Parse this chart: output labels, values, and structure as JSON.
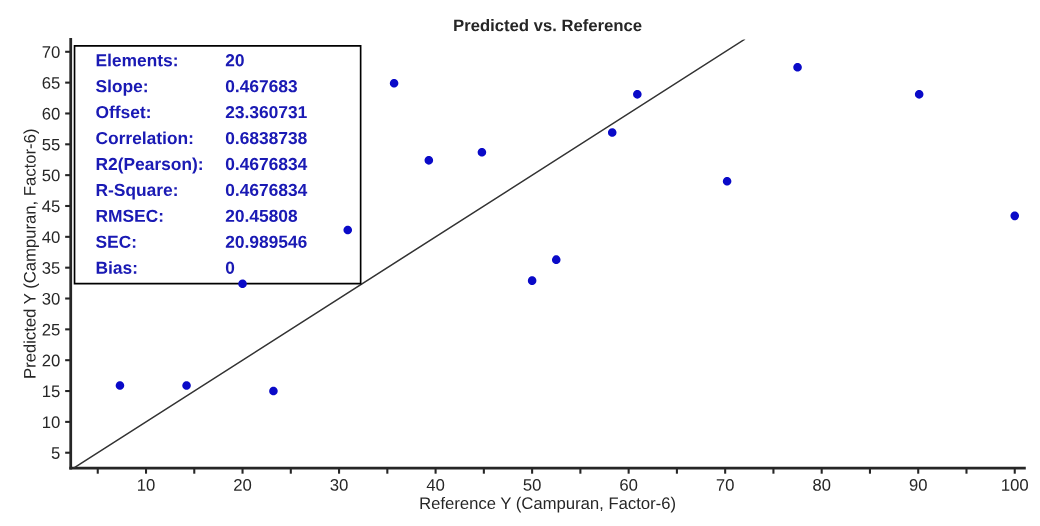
{
  "chart_data": {
    "type": "scatter",
    "title": "Predicted vs. Reference",
    "xlabel": "Reference Y (Campuran, Factor-6)",
    "ylabel": "Predicted Y (Campuran, Factor-6)",
    "xlim": [
      2.2,
      101
    ],
    "ylim": [
      2.5,
      72
    ],
    "xticks": [
      {
        "value": 5,
        "label": null
      },
      10,
      {
        "value": 15,
        "label": null
      },
      20,
      {
        "value": 25,
        "label": null
      },
      30,
      {
        "value": 35,
        "label": null
      },
      40,
      {
        "value": 45,
        "label": null
      },
      50,
      {
        "value": 55,
        "label": null
      },
      60,
      {
        "value": 65,
        "label": null
      },
      70,
      {
        "value": 75,
        "label": null
      },
      80,
      {
        "value": 85,
        "label": null
      },
      90,
      {
        "value": 95,
        "label": null
      },
      100
    ],
    "yticks": [
      5,
      10,
      15,
      20,
      25,
      30,
      35,
      40,
      45,
      50,
      55,
      60,
      65,
      70
    ],
    "grid": false,
    "legend": false,
    "marker": "circle",
    "series": [
      {
        "color": "#0a0ac8",
        "x": [
          7.3,
          14.2,
          20.0,
          23.2,
          30.9,
          35.7,
          39.3,
          44.8,
          50.0,
          52.5,
          58.3,
          60.9,
          70.2,
          77.5,
          90.1,
          100.0
        ],
        "values": [
          15.9,
          15.9,
          32.4,
          15.0,
          41.1,
          64.9,
          52.4,
          53.7,
          32.9,
          36.3,
          56.9,
          63.1,
          49.0,
          67.5,
          63.1,
          43.4
        ]
      },
      {
        "type": "line",
        "color": "#333333",
        "x": [
          2.5,
          72
        ],
        "values": [
          2.5,
          72
        ],
        "marker": "none"
      }
    ],
    "annotations": [
      "Elements: 20",
      "Slope: 0.467683",
      "Offset: 23.360731",
      "Correlation: 0.6838738",
      "R2(Pearson): 0.4676834",
      "R-Square: 0.4676834",
      "RMSEC: 20.45808",
      "SEC: 20.989546",
      "Bias: 0"
    ]
  }
}
